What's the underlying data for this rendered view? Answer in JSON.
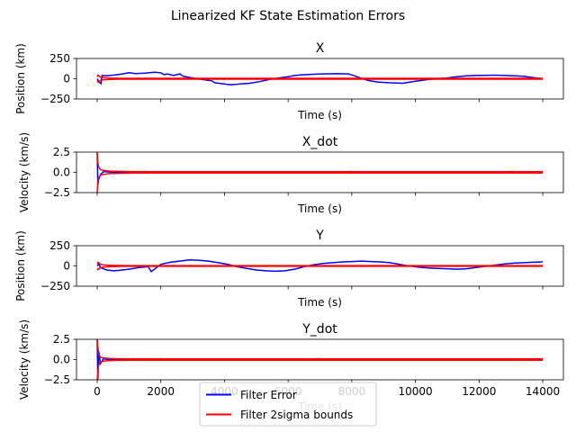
{
  "suptitle": "Linearized KF State Estimation Errors",
  "colors": {
    "error": "#0000ff",
    "bounds": "#ff0000",
    "axis": "#000000"
  },
  "legend": {
    "items": [
      "Filter Error",
      "Filter 2sigma bounds"
    ],
    "placement": "bottom-center"
  },
  "chart_data": [
    {
      "type": "line",
      "title": "X",
      "xlabel": "Time (s)",
      "ylabel": "Position (km)",
      "xlim": [
        -650,
        14650
      ],
      "ylim": [
        -250,
        250
      ],
      "yticks": [
        -250,
        0,
        250
      ],
      "xticks": [
        0,
        2000,
        4000,
        6000,
        8000,
        10000,
        12000,
        14000
      ],
      "show_xticklabels": false,
      "series": [
        {
          "name": "Filter Error",
          "x": [
            0,
            60,
            120,
            150,
            300,
            500,
            800,
            1000,
            1200,
            1500,
            1800,
            2000,
            2100,
            2200,
            2400,
            2600,
            2700,
            3000,
            3300,
            3600,
            3700,
            3900,
            4200,
            4500,
            4800,
            5100,
            5400,
            5700,
            6000,
            6200,
            6500,
            6800,
            7100,
            7500,
            7900,
            8200,
            8500,
            8800,
            9200,
            9600,
            10000,
            10400,
            10700,
            11000,
            11300,
            11600,
            11900,
            12200,
            12500,
            12800,
            13100,
            13400,
            13600,
            13800,
            14000
          ],
          "values": [
            0,
            -40,
            -60,
            40,
            35,
            45,
            60,
            75,
            65,
            70,
            80,
            75,
            50,
            60,
            40,
            60,
            30,
            10,
            -10,
            -25,
            -50,
            -60,
            -75,
            -65,
            -55,
            -35,
            -10,
            10,
            25,
            40,
            50,
            55,
            60,
            62,
            60,
            20,
            -20,
            -40,
            -50,
            -55,
            -30,
            -10,
            0,
            10,
            25,
            35,
            40,
            42,
            45,
            40,
            35,
            30,
            20,
            10,
            0
          ]
        },
        {
          "name": "Filter 2sigma bounds",
          "x": [
            0,
            30,
            100,
            200,
            400,
            700,
            1000,
            2000,
            4000,
            6000,
            8000,
            10000,
            12000,
            14000
          ],
          "upper": [
            25,
            45,
            20,
            12,
            8,
            6,
            5,
            5,
            5,
            5,
            5,
            5,
            5,
            5
          ],
          "lower": [
            -25,
            -45,
            -20,
            -12,
            -8,
            -6,
            -5,
            -5,
            -5,
            -5,
            -5,
            -5,
            -5,
            -5
          ]
        }
      ]
    },
    {
      "type": "line",
      "title": "X_dot",
      "xlabel": "Time (s)",
      "ylabel": "Velocity (km/s)",
      "xlim": [
        -650,
        14650
      ],
      "ylim": [
        -2.5,
        2.5
      ],
      "yticks": [
        -2.5,
        0.0,
        2.5
      ],
      "xticks": [
        0,
        2000,
        4000,
        6000,
        8000,
        10000,
        12000,
        14000
      ],
      "show_xticklabels": false,
      "series": [
        {
          "name": "Filter Error",
          "x": [
            0,
            20,
            50,
            100,
            200,
            400,
            700,
            1000,
            1500,
            2000,
            3000,
            4000,
            5000,
            6000,
            7000,
            8000,
            9000,
            10000,
            11000,
            12000,
            13000,
            14000
          ],
          "values": [
            2.4,
            -1.5,
            -0.8,
            -0.3,
            0.1,
            0.05,
            -0.05,
            0.05,
            0.1,
            -0.05,
            0.08,
            -0.05,
            0.05,
            -0.08,
            0.06,
            0.1,
            -0.05,
            0.05,
            -0.06,
            0.05,
            0.1,
            -0.05
          ]
        },
        {
          "name": "Filter 2sigma bounds",
          "x": [
            0,
            20,
            50,
            100,
            200,
            400,
            700,
            1000,
            2000,
            4000,
            6000,
            8000,
            10000,
            12000,
            14000
          ],
          "upper": [
            2.5,
            1.2,
            0.6,
            0.35,
            0.25,
            0.15,
            0.12,
            0.1,
            0.08,
            0.08,
            0.08,
            0.08,
            0.08,
            0.08,
            0.08
          ],
          "lower": [
            -2.5,
            -1.2,
            -0.6,
            -0.35,
            -0.25,
            -0.15,
            -0.12,
            -0.1,
            -0.08,
            -0.08,
            -0.08,
            -0.08,
            -0.08,
            -0.08,
            -0.08
          ]
        }
      ]
    },
    {
      "type": "line",
      "title": "Y",
      "xlabel": "Time (s)",
      "ylabel": "Position (km)",
      "xlim": [
        -650,
        14650
      ],
      "ylim": [
        -250,
        250
      ],
      "yticks": [
        -250,
        0,
        250
      ],
      "xticks": [
        0,
        2000,
        4000,
        6000,
        8000,
        10000,
        12000,
        14000
      ],
      "show_xticklabels": false,
      "series": [
        {
          "name": "Filter Error",
          "x": [
            0,
            50,
            100,
            300,
            500,
            700,
            1000,
            1300,
            1600,
            1700,
            2000,
            2300,
            2600,
            2900,
            3200,
            3500,
            3800,
            4100,
            4400,
            4700,
            5000,
            5300,
            5600,
            5900,
            6200,
            6500,
            6800,
            7100,
            7400,
            7700,
            8000,
            8300,
            8600,
            8900,
            9200,
            9500,
            9800,
            10100,
            10400,
            10700,
            11000,
            11300,
            11600,
            11900,
            12200,
            12500,
            12800,
            13100,
            13400,
            13700,
            14000
          ],
          "values": [
            0,
            30,
            -20,
            -50,
            -60,
            -55,
            -40,
            -20,
            -10,
            -70,
            20,
            45,
            60,
            75,
            70,
            60,
            40,
            20,
            -10,
            -30,
            -50,
            -60,
            -65,
            -60,
            -40,
            -10,
            15,
            30,
            40,
            50,
            55,
            60,
            55,
            50,
            40,
            20,
            0,
            -15,
            -25,
            -30,
            -35,
            -40,
            -35,
            -20,
            -5,
            10,
            25,
            35,
            40,
            45,
            50
          ]
        },
        {
          "name": "Filter 2sigma bounds",
          "x": [
            0,
            30,
            100,
            200,
            400,
            700,
            1000,
            2000,
            4000,
            6000,
            8000,
            10000,
            12000,
            14000
          ],
          "upper": [
            30,
            45,
            20,
            12,
            8,
            6,
            5,
            5,
            5,
            5,
            5,
            5,
            5,
            5
          ],
          "lower": [
            -30,
            -45,
            -20,
            -12,
            -8,
            -6,
            -5,
            -5,
            -5,
            -5,
            -5,
            -5,
            -5,
            -5
          ]
        }
      ]
    },
    {
      "type": "line",
      "title": "Y_dot",
      "xlabel": "Time (s)",
      "ylabel": "Velocity (km/s)",
      "xlim": [
        -650,
        14650
      ],
      "ylim": [
        -2.5,
        2.5
      ],
      "yticks": [
        -2.5,
        0.0,
        2.5
      ],
      "xticks": [
        0,
        2000,
        4000,
        6000,
        8000,
        10000,
        12000,
        14000
      ],
      "xticklabels": [
        "0",
        "2000",
        "4000",
        "6000",
        "8000",
        "10000",
        "12000",
        "14000"
      ],
      "show_xticklabels": true,
      "series": [
        {
          "name": "Filter Error",
          "x": [
            0,
            20,
            50,
            100,
            200,
            400,
            700,
            1000,
            1500,
            2000,
            3000,
            4000,
            5000,
            6000,
            7000,
            8000,
            9000,
            10000,
            11000,
            12000,
            13000,
            14000
          ],
          "values": [
            2.5,
            -2.5,
            1.0,
            -0.5,
            0.1,
            -0.05,
            0.05,
            -0.08,
            0.05,
            0.1,
            -0.05,
            0.06,
            -0.08,
            0.05,
            0.1,
            -0.05,
            0.06,
            -0.05,
            0.08,
            -0.05,
            0.05,
            0.02
          ]
        },
        {
          "name": "Filter 2sigma bounds",
          "x": [
            0,
            20,
            50,
            100,
            200,
            400,
            700,
            1000,
            2000,
            4000,
            6000,
            8000,
            10000,
            12000,
            14000
          ],
          "upper": [
            2.5,
            1.5,
            0.6,
            0.3,
            0.2,
            0.12,
            0.1,
            0.08,
            0.08,
            0.08,
            0.08,
            0.08,
            0.08,
            0.08,
            0.08
          ],
          "lower": [
            -2.5,
            -1.5,
            -0.6,
            -0.3,
            -0.2,
            -0.12,
            -0.1,
            -0.08,
            -0.08,
            -0.08,
            -0.08,
            -0.08,
            -0.08,
            -0.08,
            -0.08
          ]
        }
      ]
    }
  ]
}
